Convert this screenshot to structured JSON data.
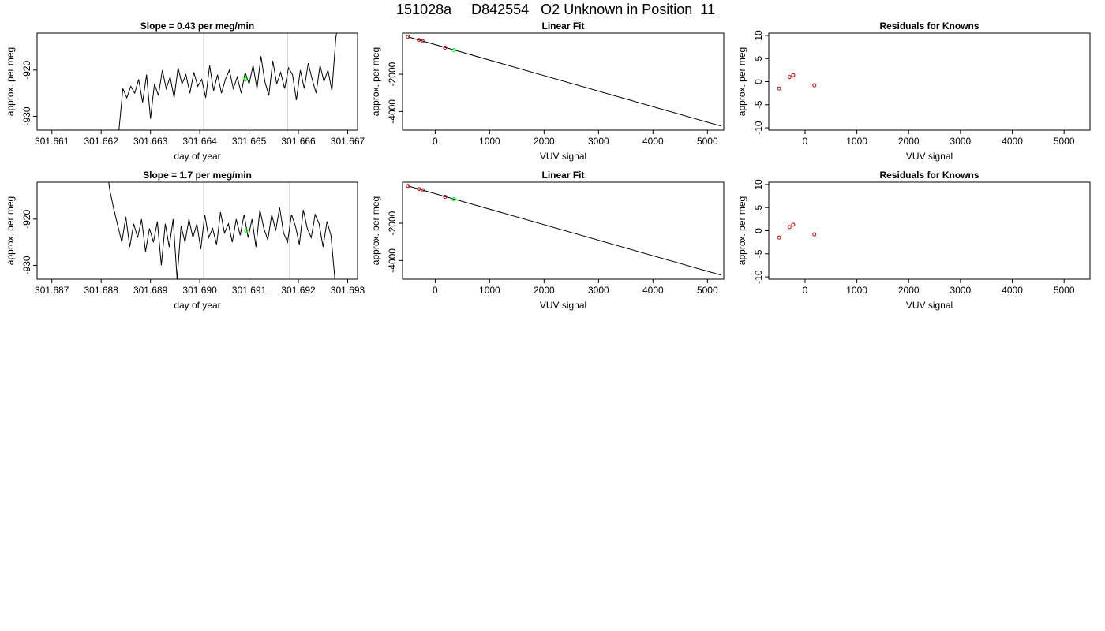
{
  "figure": {
    "title": "151028a     D842554   O2 Unknown in Position  11"
  },
  "chart_data": [
    {
      "id": "timeseries-1",
      "type": "line",
      "title": "Slope =  0.43  per meg/min",
      "xlabel": "day of year",
      "ylabel": "approx. per meg",
      "xlim": [
        301.6607,
        301.6672
      ],
      "ylim": [
        -933,
        -912
      ],
      "xticks": [
        301.661,
        301.662,
        301.663,
        301.664,
        301.665,
        301.666,
        301.667
      ],
      "xtick_labels": [
        "301.661",
        "301.662",
        "301.663",
        "301.664",
        "301.665",
        "301.666",
        "301.667"
      ],
      "yticks": [
        -930,
        -920
      ],
      "ytick_labels": [
        "-930",
        "-920"
      ],
      "vlines": [
        301.66408,
        301.66578
      ],
      "vline_color": "#cccccc",
      "series": [
        {
          "color": "#000000",
          "x": [
            301.66236,
            301.66244,
            301.66252,
            301.6626,
            301.66268,
            301.66276,
            301.66284,
            301.66292,
            301.663,
            301.66308,
            301.66316,
            301.66324,
            301.66332,
            301.6634,
            301.66348,
            301.66356,
            301.66364,
            301.66372,
            301.6638,
            301.66388,
            301.66396,
            301.66404,
            301.66412,
            301.6642,
            301.66428,
            301.66436,
            301.66444,
            301.66452,
            301.6646,
            301.66468,
            301.66476,
            301.66484,
            301.66492,
            301.665,
            301.66508,
            301.66516,
            301.66524,
            301.66532,
            301.6654,
            301.66548,
            301.66556,
            301.66564,
            301.66572,
            301.6658,
            301.66588,
            301.66596,
            301.66604,
            301.66612,
            301.6662,
            301.66628,
            301.66636,
            301.66644,
            301.66652,
            301.6666,
            301.66668,
            301.66676,
            301.66682
          ],
          "y": [
            -933,
            -924,
            -926,
            -923.5,
            -925,
            -922,
            -927,
            -921,
            -930.5,
            -923,
            -925.5,
            -920,
            -924,
            -921.5,
            -926,
            -919.5,
            -923,
            -921,
            -925,
            -920.5,
            -923.5,
            -922,
            -926,
            -919,
            -924.5,
            -921,
            -925,
            -922,
            -920,
            -924,
            -921.5,
            -925,
            -920.5,
            -923,
            -919,
            -924,
            -917,
            -922.5,
            -925.5,
            -918,
            -923,
            -920.5,
            -924,
            -919.5,
            -921,
            -926.5,
            -920,
            -924,
            -918.5,
            -922,
            -925,
            -919,
            -922.5,
            -920,
            -924.5,
            -913,
            -909
          ]
        }
      ],
      "markers": [
        {
          "x": 301.66492,
          "y": -922,
          "color": "#00ff00",
          "shape": "circle"
        }
      ]
    },
    {
      "id": "linear-fit-1",
      "type": "scatter",
      "title": "Linear Fit",
      "xlabel": "VUV signal",
      "ylabel": "approx. per meg",
      "xlim": [
        -600,
        5300
      ],
      "ylim": [
        -5000,
        200
      ],
      "xticks": [
        0,
        1000,
        2000,
        3000,
        4000,
        5000
      ],
      "xtick_labels": [
        "0",
        "1000",
        "2000",
        "3000",
        "4000",
        "5000"
      ],
      "yticks": [
        -4000,
        -2000
      ],
      "ytick_labels": [
        "-4000",
        "-2000"
      ],
      "fit_line": {
        "x": [
          -500,
          5250
        ],
        "y": [
          0,
          -4780
        ],
        "color": "#000000"
      },
      "series": [
        {
          "name": "knowns",
          "color": "#cc0000",
          "shape": "open-circle",
          "x": [
            -500,
            -300,
            -230,
            180
          ],
          "y": [
            0,
            -170,
            -230,
            -580
          ]
        },
        {
          "name": "unknown",
          "color": "#00ff00",
          "shape": "open-circle",
          "x": [
            340
          ],
          "y": [
            -710
          ]
        }
      ]
    },
    {
      "id": "residuals-1",
      "type": "scatter",
      "title": "Residuals for Knowns",
      "xlabel": "VUV signal",
      "ylabel": "approx. per meg",
      "xlim": [
        -700,
        5500
      ],
      "ylim": [
        -10.5,
        10.5
      ],
      "xticks": [
        0,
        1000,
        2000,
        3000,
        4000,
        5000
      ],
      "xtick_labels": [
        "0",
        "1000",
        "2000",
        "3000",
        "4000",
        "5000"
      ],
      "yticks": [
        -10,
        -5,
        0,
        5,
        10
      ],
      "ytick_labels": [
        "-10",
        "-5",
        "0",
        "5",
        "10"
      ],
      "series": [
        {
          "color": "#cc0000",
          "shape": "open-circle",
          "x": [
            -500,
            -300,
            -230,
            180
          ],
          "y": [
            -1.5,
            1.0,
            1.4,
            -0.8
          ]
        }
      ]
    },
    {
      "id": "timeseries-2",
      "type": "line",
      "title": "Slope =  1.7  per meg/min",
      "xlabel": "day of year",
      "ylabel": "approx. per meg",
      "xlim": [
        301.6867,
        301.6932
      ],
      "ylim": [
        -933,
        -912
      ],
      "xticks": [
        301.687,
        301.688,
        301.689,
        301.69,
        301.691,
        301.692,
        301.693
      ],
      "xtick_labels": [
        "301.687",
        "301.688",
        "301.689",
        "301.690",
        "301.691",
        "301.692",
        "301.693"
      ],
      "yticks": [
        -930,
        -920
      ],
      "ytick_labels": [
        "-930",
        "-920"
      ],
      "vlines": [
        301.69008,
        301.69182
      ],
      "vline_color": "#cccccc",
      "series": [
        {
          "color": "#000000",
          "x": [
            301.6881,
            301.68818,
            301.68826,
            301.68834,
            301.68842,
            301.6885,
            301.68858,
            301.68866,
            301.68874,
            301.68882,
            301.6889,
            301.68898,
            301.68906,
            301.68914,
            301.68922,
            301.6893,
            301.68938,
            301.68946,
            301.68954,
            301.68962,
            301.6897,
            301.68978,
            301.68986,
            301.68994,
            301.69002,
            301.6901,
            301.69018,
            301.69026,
            301.69034,
            301.69042,
            301.6905,
            301.69058,
            301.69066,
            301.69074,
            301.69082,
            301.6909,
            301.69098,
            301.69106,
            301.69114,
            301.69122,
            301.6913,
            301.69138,
            301.69146,
            301.69154,
            301.69162,
            301.6917,
            301.69178,
            301.69186,
            301.69194,
            301.69202,
            301.6921,
            301.69218,
            301.69226,
            301.69234,
            301.69242,
            301.6925,
            301.69258,
            301.69266,
            301.69274
          ],
          "y": [
            -908,
            -914,
            -918,
            -921.5,
            -925,
            -919.5,
            -926,
            -921,
            -924,
            -920,
            -927,
            -922,
            -925,
            -920.5,
            -930,
            -921,
            -926,
            -920,
            -933,
            -921.5,
            -925,
            -920,
            -924,
            -921,
            -926.5,
            -919,
            -924,
            -922,
            -925.5,
            -918.5,
            -923,
            -921,
            -925,
            -920,
            -923.5,
            -919,
            -924,
            -920,
            -926,
            -918,
            -922,
            -924.5,
            -919,
            -922.5,
            -917.5,
            -923,
            -925,
            -919,
            -921.5,
            -925.5,
            -918,
            -922,
            -924,
            -919,
            -921,
            -926,
            -920.5,
            -923.5,
            -933
          ]
        }
      ],
      "markers": [
        {
          "x": 301.69094,
          "y": -922.5,
          "color": "#00ff00",
          "shape": "circle"
        }
      ]
    },
    {
      "id": "linear-fit-2",
      "type": "scatter",
      "title": "Linear Fit",
      "xlabel": "VUV signal",
      "ylabel": "approx. per meg",
      "xlim": [
        -600,
        5300
      ],
      "ylim": [
        -5000,
        200
      ],
      "xticks": [
        0,
        1000,
        2000,
        3000,
        4000,
        5000
      ],
      "xtick_labels": [
        "0",
        "1000",
        "2000",
        "3000",
        "4000",
        "5000"
      ],
      "yticks": [
        -4000,
        -2000
      ],
      "ytick_labels": [
        "-4000",
        "-2000"
      ],
      "fit_line": {
        "x": [
          -500,
          5250
        ],
        "y": [
          0,
          -4780
        ],
        "color": "#000000"
      },
      "series": [
        {
          "name": "knowns",
          "color": "#cc0000",
          "shape": "open-circle",
          "x": [
            -500,
            -300,
            -230,
            180
          ],
          "y": [
            0,
            -170,
            -230,
            -580
          ]
        },
        {
          "name": "unknown",
          "color": "#00ff00",
          "shape": "open-circle",
          "x": [
            340
          ],
          "y": [
            -710
          ]
        }
      ]
    },
    {
      "id": "residuals-2",
      "type": "scatter",
      "title": "Residuals for Knowns",
      "xlabel": "VUV signal",
      "ylabel": "approx. per meg",
      "xlim": [
        -700,
        5500
      ],
      "ylim": [
        -10.5,
        10.5
      ],
      "xticks": [
        0,
        1000,
        2000,
        3000,
        4000,
        5000
      ],
      "xtick_labels": [
        "0",
        "1000",
        "2000",
        "3000",
        "4000",
        "5000"
      ],
      "yticks": [
        -10,
        -5,
        0,
        5,
        10
      ],
      "ytick_labels": [
        "-10",
        "-5",
        "0",
        "5",
        "10"
      ],
      "series": [
        {
          "color": "#cc0000",
          "shape": "open-circle",
          "x": [
            -500,
            -300,
            -230,
            180
          ],
          "y": [
            -1.5,
            0.8,
            1.3,
            -0.8
          ]
        }
      ]
    }
  ]
}
